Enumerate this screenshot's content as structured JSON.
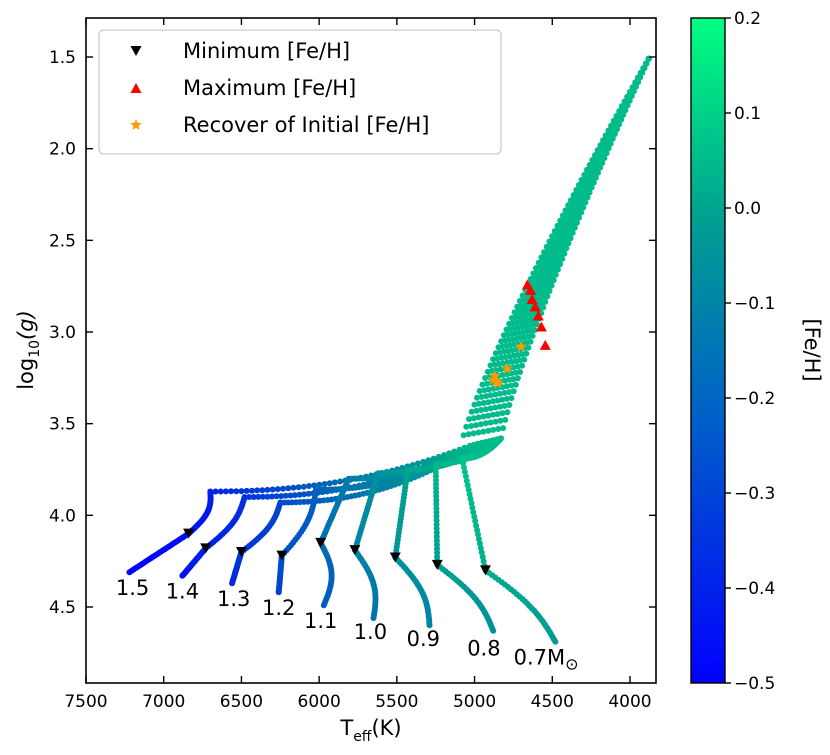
{
  "chart_data": {
    "type": "scatter",
    "title": "",
    "xlabel_main": "T",
    "xlabel_sub": "eff",
    "xlabel_unit": "(K)",
    "ylabel_main": "log",
    "ylabel_sub": "10",
    "ylabel_arg": "(g)",
    "xlim": [
      7500,
      3800
    ],
    "ylim": [
      4.85,
      1.35
    ],
    "xticks": [
      7500,
      7000,
      6500,
      6000,
      5500,
      5000,
      4500,
      4000
    ],
    "yticks": [
      1.5,
      2.0,
      2.5,
      3.0,
      3.5,
      4.0,
      4.5
    ],
    "ytick_labels": [
      "1.5",
      "2.0",
      "2.5",
      "3.0",
      "3.5",
      "4.0",
      "4.5"
    ],
    "colorbar": {
      "label": "[Fe/H]",
      "range": [
        -0.5,
        0.2
      ],
      "ticks": [
        0.2,
        0.1,
        0.0,
        -0.1,
        -0.2,
        -0.3,
        -0.4,
        -0.5
      ],
      "tick_labels": [
        "0.2",
        "0.1",
        "0.0",
        "−0.1",
        "−0.2",
        "−0.3",
        "−0.4",
        "−0.5"
      ],
      "color_low": "#0000ff",
      "color_mid": "#00a090",
      "color_high": "#00ff80"
    },
    "legend": {
      "position": "upper-left",
      "entries": [
        {
          "label": "Minimum [Fe/H]",
          "marker": "triangle-down",
          "color": "#000000"
        },
        {
          "label": "Maximum [Fe/H]",
          "marker": "triangle-up",
          "color": "#ff0000"
        },
        {
          "label": "Recover of Initial [Fe/H]",
          "marker": "star",
          "color": "#ff9900"
        }
      ]
    },
    "tracks": [
      {
        "mass": "1.5",
        "zams_teff": 7220,
        "zams_logg": 4.31,
        "min_teff": 6840,
        "min_logg": 4.1,
        "hook_teff": 6700,
        "hook_logg": 3.87,
        "feh_start": -0.5,
        "label_teff": 7200,
        "label_logg": 4.39
      },
      {
        "mass": "1.4",
        "zams_teff": 6880,
        "zams_logg": 4.33,
        "min_teff": 6730,
        "min_logg": 4.18,
        "hook_teff": 6480,
        "hook_logg": 3.9,
        "feh_start": -0.45,
        "label_teff": 6880,
        "label_logg": 4.41
      },
      {
        "mass": "1.3",
        "zams_teff": 6560,
        "zams_logg": 4.37,
        "min_teff": 6500,
        "min_logg": 4.2,
        "hook_teff": 6250,
        "hook_logg": 3.93,
        "feh_start": -0.38,
        "label_teff": 6550,
        "label_logg": 4.45
      },
      {
        "mass": "1.2",
        "zams_teff": 6260,
        "zams_logg": 4.42,
        "min_teff": 6240,
        "min_logg": 4.22,
        "hook_teff": 6020,
        "hook_logg": 3.86,
        "feh_start": -0.3,
        "label_teff": 6260,
        "label_logg": 4.5
      },
      {
        "mass": "1.1",
        "zams_teff": 5970,
        "zams_logg": 4.49,
        "min_teff": 5990,
        "min_logg": 4.15,
        "hook_teff": 5810,
        "hook_logg": 3.8,
        "feh_start": -0.22,
        "label_teff": 5990,
        "label_logg": 4.57
      },
      {
        "mass": "1.0",
        "zams_teff": 5650,
        "zams_logg": 4.56,
        "min_teff": 5770,
        "min_logg": 4.19,
        "hook_teff": 5620,
        "hook_logg": 3.77,
        "feh_start": -0.15,
        "label_teff": 5670,
        "label_logg": 4.63
      },
      {
        "mass": "0.9",
        "zams_teff": 5290,
        "zams_logg": 4.6,
        "min_teff": 5510,
        "min_logg": 4.23,
        "hook_teff": 5430,
        "hook_logg": 3.75,
        "feh_start": -0.1,
        "label_teff": 5330,
        "label_logg": 4.67
      },
      {
        "mass": "0.8",
        "zams_teff": 4880,
        "zams_logg": 4.63,
        "min_teff": 5240,
        "min_logg": 4.27,
        "hook_teff": 5250,
        "hook_logg": 3.72,
        "feh_start": -0.06,
        "label_teff": 4940,
        "label_logg": 4.72
      },
      {
        "mass": "0.7",
        "zams_teff": 4480,
        "zams_logg": 4.69,
        "min_teff": 4930,
        "min_logg": 4.3,
        "hook_teff": 5080,
        "hook_logg": 3.69,
        "feh_start": -0.03,
        "label_teff": 4540,
        "label_logg": 4.77
      }
    ],
    "mass_suffix": "M",
    "sun_symbol": "⊙",
    "rgb_tip": {
      "teff": 3880,
      "logg": 1.51
    },
    "maximum_points": [
      {
        "teff": 4660,
        "logg": 2.74
      },
      {
        "teff": 4640,
        "logg": 2.77
      },
      {
        "teff": 4630,
        "logg": 2.82
      },
      {
        "teff": 4610,
        "logg": 2.86
      },
      {
        "teff": 4590,
        "logg": 2.91
      },
      {
        "teff": 4570,
        "logg": 2.97
      },
      {
        "teff": 4545,
        "logg": 3.07
      }
    ],
    "recover_points": [
      {
        "teff": 4700,
        "logg": 3.08
      },
      {
        "teff": 4790,
        "logg": 3.2
      },
      {
        "teff": 4870,
        "logg": 3.24
      },
      {
        "teff": 4860,
        "logg": 3.27
      },
      {
        "teff": 4880,
        "logg": 3.26
      },
      {
        "teff": 4850,
        "logg": 3.28
      }
    ]
  }
}
